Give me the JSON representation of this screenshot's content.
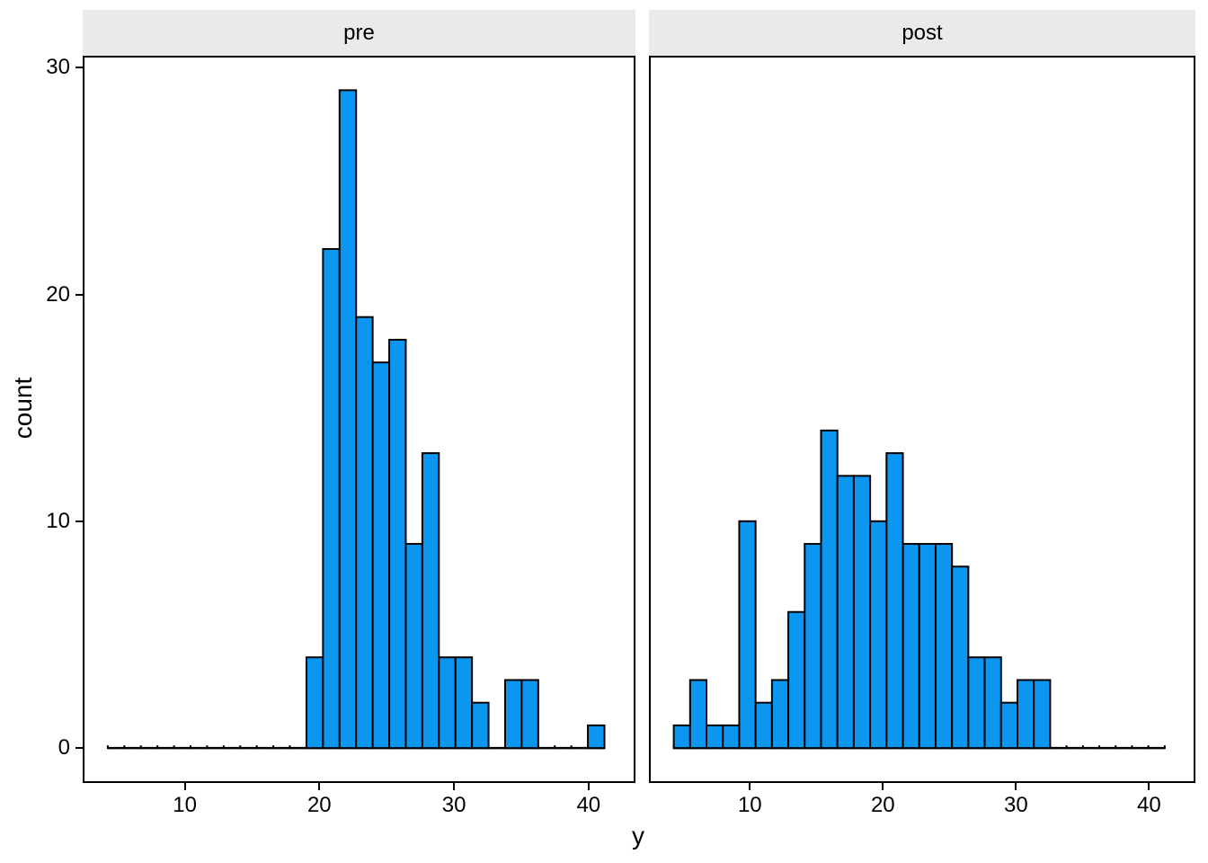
{
  "figure": {
    "x_axis_title": "y",
    "y_axis_title": "count"
  },
  "facets": [
    {
      "label": "pre"
    },
    {
      "label": "post"
    }
  ],
  "axes": {
    "x_ticks": [
      "10",
      "20",
      "30",
      "40"
    ],
    "y_ticks": [
      "0",
      "10",
      "20",
      "30"
    ]
  },
  "theme": {
    "bar_fill": "#0B96F0",
    "bar_stroke": "#000000",
    "strip_bg": "#EAEAEA",
    "panel_border": "#000000",
    "text_color": "#000000",
    "background": "#FFFFFF"
  },
  "chart_data": {
    "type": "bar",
    "subtype": "faceted_histogram",
    "title": "",
    "xlabel": "y",
    "ylabel": "count",
    "legend": "none",
    "grid": "off",
    "facet_labels": [
      "pre",
      "post"
    ],
    "x_ticks": [
      10,
      20,
      30,
      40
    ],
    "y_ticks": [
      0,
      10,
      20,
      30
    ],
    "x_range": [
      2.55,
      43.35
    ],
    "y_range": [
      -1.46,
      30.44
    ],
    "bin_origin": 4.28,
    "binwidth": 1.23,
    "zero_line_extent": [
      4.28,
      41.18
    ],
    "series": [
      {
        "name": "pre",
        "first_bin_start": 4.28,
        "counts": [
          0,
          0,
          0,
          0,
          0,
          0,
          0,
          0,
          0,
          0,
          0,
          0,
          4,
          22,
          29,
          19,
          17,
          18,
          9,
          13,
          4,
          4,
          2,
          0,
          3,
          3,
          0,
          0,
          0,
          1
        ],
        "total": 148
      },
      {
        "name": "post",
        "first_bin_start": 4.28,
        "counts": [
          1,
          3,
          1,
          1,
          10,
          2,
          3,
          6,
          9,
          14,
          12,
          12,
          10,
          13,
          9,
          9,
          9,
          8,
          4,
          4,
          2,
          3,
          3,
          0,
          0,
          0,
          0,
          0,
          0,
          0
        ],
        "total": 148
      }
    ]
  }
}
